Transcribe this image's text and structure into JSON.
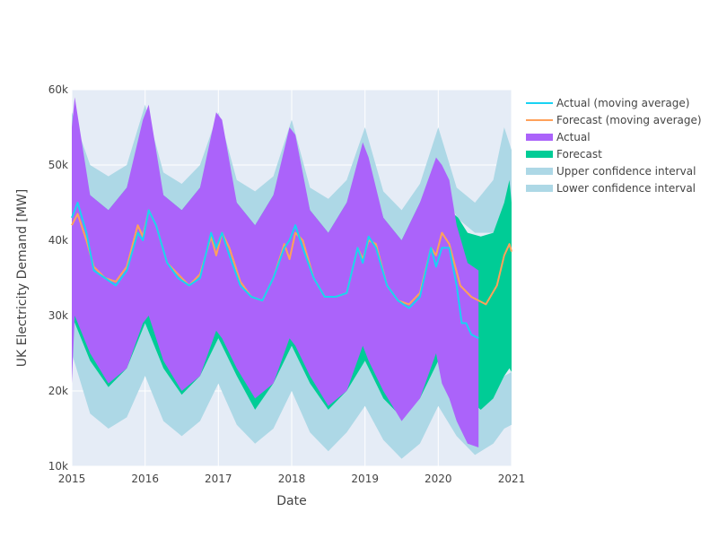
{
  "chart_data": {
    "type": "area",
    "xlabel": "Date",
    "ylabel": "UK Electricity Demand [MW]",
    "xlim": [
      2015,
      2021
    ],
    "ylim": [
      10000,
      60000
    ],
    "x_ticks": [
      {
        "value": 2015,
        "label": "2015"
      },
      {
        "value": 2016,
        "label": "2016"
      },
      {
        "value": 2017,
        "label": "2017"
      },
      {
        "value": 2018,
        "label": "2018"
      },
      {
        "value": 2019,
        "label": "2019"
      },
      {
        "value": 2020,
        "label": "2020"
      },
      {
        "value": 2021,
        "label": "2021"
      }
    ],
    "y_ticks": [
      {
        "value": 10000,
        "label": "10k"
      },
      {
        "value": 20000,
        "label": "20k"
      },
      {
        "value": 30000,
        "label": "30k"
      },
      {
        "value": 40000,
        "label": "40k"
      },
      {
        "value": 50000,
        "label": "50k"
      },
      {
        "value": 60000,
        "label": "60k"
      }
    ],
    "grid": true,
    "legend_position": "right",
    "plot_background": "#E5ECF6",
    "series": [
      {
        "name": "Actual (moving average)",
        "kind": "line",
        "color": "#19D3F3",
        "x": [
          2015.0,
          2015.08,
          2015.2,
          2015.3,
          2015.45,
          2015.6,
          2015.75,
          2015.9,
          2015.97,
          2016.05,
          2016.15,
          2016.3,
          2016.45,
          2016.6,
          2016.75,
          2016.9,
          2016.97,
          2017.05,
          2017.15,
          2017.3,
          2017.45,
          2017.6,
          2017.75,
          2017.9,
          2017.97,
          2018.05,
          2018.15,
          2018.3,
          2018.45,
          2018.6,
          2018.75,
          2018.9,
          2018.97,
          2019.05,
          2019.15,
          2019.3,
          2019.45,
          2019.6,
          2019.75,
          2019.9,
          2019.97,
          2020.05,
          2020.15,
          2020.25,
          2020.32,
          2020.38,
          2020.45,
          2020.55
        ],
        "y": [
          43000,
          45000,
          41000,
          36000,
          35000,
          34000,
          36000,
          41000,
          40000,
          44000,
          42000,
          37000,
          35000,
          34000,
          35000,
          41000,
          39000,
          41000,
          38000,
          34000,
          32500,
          32000,
          35000,
          39000,
          40000,
          42000,
          39000,
          35000,
          32500,
          32500,
          33000,
          39000,
          37000,
          40500,
          39000,
          34000,
          32000,
          31000,
          32500,
          39000,
          36500,
          39000,
          39000,
          34000,
          29000,
          29000,
          27500,
          27000
        ]
      },
      {
        "name": "Forecast (moving average)",
        "kind": "line",
        "color": "#FFA15A",
        "x": [
          2015.0,
          2015.08,
          2015.2,
          2015.3,
          2015.45,
          2015.6,
          2015.75,
          2015.9,
          2015.97,
          2016.05,
          2016.15,
          2016.3,
          2016.45,
          2016.6,
          2016.75,
          2016.9,
          2016.97,
          2017.05,
          2017.15,
          2017.3,
          2017.45,
          2017.6,
          2017.75,
          2017.9,
          2017.97,
          2018.05,
          2018.15,
          2018.3,
          2018.45,
          2018.6,
          2018.75,
          2018.9,
          2018.97,
          2019.05,
          2019.15,
          2019.3,
          2019.45,
          2019.6,
          2019.75,
          2019.9,
          2019.97,
          2020.05,
          2020.15,
          2020.3,
          2020.45,
          2020.65,
          2020.8,
          2020.9,
          2020.97,
          2021.0
        ],
        "y": [
          42000,
          43500,
          40000,
          36500,
          35000,
          34500,
          36500,
          42000,
          40500,
          44000,
          42000,
          37000,
          35500,
          34000,
          35500,
          40500,
          38000,
          41000,
          39000,
          34500,
          32500,
          32000,
          35000,
          39500,
          37500,
          41000,
          40000,
          35000,
          32500,
          32500,
          33000,
          39000,
          37500,
          40000,
          39500,
          34000,
          32000,
          31500,
          33000,
          39000,
          38000,
          41000,
          39500,
          34000,
          32500,
          31500,
          34000,
          38000,
          39500,
          38500
        ]
      },
      {
        "name": "Actual",
        "kind": "band",
        "color": "#AB63FA",
        "x": [
          2015.0,
          2015.04,
          2015.25,
          2015.5,
          2015.75,
          2015.97,
          2016.05,
          2016.25,
          2016.5,
          2016.75,
          2016.97,
          2017.05,
          2017.25,
          2017.5,
          2017.75,
          2017.97,
          2018.05,
          2018.25,
          2018.5,
          2018.75,
          2018.97,
          2019.05,
          2019.25,
          2019.5,
          2019.75,
          2019.97,
          2020.05,
          2020.15,
          2020.25,
          2020.4,
          2020.55
        ],
        "upper": [
          55000,
          59000,
          46000,
          44000,
          47000,
          56000,
          58000,
          46000,
          44000,
          47000,
          57000,
          56000,
          45000,
          42000,
          46000,
          55000,
          54000,
          44000,
          41000,
          45000,
          53000,
          51000,
          43000,
          40000,
          45000,
          51000,
          50000,
          48000,
          42000,
          37000,
          36000
        ],
        "lower": [
          21000,
          30000,
          25000,
          21000,
          23000,
          29000,
          30000,
          24000,
          20000,
          22000,
          28000,
          27000,
          23000,
          19000,
          21000,
          27000,
          26000,
          22000,
          18000,
          20000,
          26000,
          24000,
          20000,
          16000,
          19000,
          25000,
          21000,
          19000,
          16000,
          13000,
          12500
        ]
      },
      {
        "name": "Forecast",
        "kind": "band",
        "color": "#00CC96",
        "x": [
          2015.0,
          2015.25,
          2015.5,
          2015.75,
          2016.0,
          2016.25,
          2016.5,
          2016.75,
          2017.0,
          2017.25,
          2017.5,
          2017.75,
          2018.0,
          2018.25,
          2018.5,
          2018.75,
          2019.0,
          2019.25,
          2019.5,
          2019.75,
          2020.0,
          2020.15,
          2020.27,
          2020.4,
          2020.58,
          2020.75,
          2020.9,
          2020.97,
          2021.0
        ],
        "upper": [
          55000,
          46000,
          44000,
          47000,
          56000,
          46000,
          44000,
          47000,
          56000,
          45000,
          42000,
          46000,
          54000,
          44000,
          41000,
          45000,
          51000,
          43000,
          40000,
          45000,
          50000,
          44000,
          43000,
          41000,
          40500,
          41000,
          45000,
          48000,
          45000
        ],
        "lower": [
          30000,
          24000,
          20500,
          23000,
          29000,
          23000,
          19500,
          22000,
          27000,
          22000,
          17500,
          21000,
          26000,
          21000,
          17500,
          20000,
          24000,
          19000,
          16500,
          19000,
          24000,
          21000,
          20000,
          19000,
          17500,
          19000,
          22000,
          23000,
          22500
        ]
      },
      {
        "name": "Upper confidence interval",
        "kind": "band",
        "color": "#ADD8E6",
        "x": [
          2015.0,
          2015.25,
          2015.5,
          2015.75,
          2016.0,
          2016.25,
          2016.5,
          2016.75,
          2017.0,
          2017.25,
          2017.5,
          2017.75,
          2018.0,
          2018.25,
          2018.5,
          2018.75,
          2019.0,
          2019.25,
          2019.5,
          2019.75,
          2020.0,
          2020.25,
          2020.5,
          2020.75,
          2020.9,
          2021.0
        ],
        "upper": [
          57000,
          50000,
          48500,
          50000,
          58000,
          49000,
          47500,
          50000,
          57000,
          48000,
          46500,
          48500,
          56000,
          47000,
          45500,
          48000,
          55000,
          46500,
          44000,
          47500,
          55000,
          47000,
          45000,
          48000,
          55000,
          52000
        ],
        "lower": [
          55000,
          46000,
          44000,
          47000,
          56000,
          46000,
          44000,
          47000,
          56000,
          45000,
          42000,
          46000,
          54000,
          44000,
          41000,
          45000,
          51000,
          43000,
          40000,
          45000,
          50000,
          43000,
          41000,
          41000,
          45000,
          45000
        ]
      },
      {
        "name": "Lower confidence interval",
        "kind": "band",
        "color": "#ADD8E6",
        "x": [
          2015.0,
          2015.25,
          2015.5,
          2015.75,
          2016.0,
          2016.25,
          2016.5,
          2016.75,
          2017.0,
          2017.25,
          2017.5,
          2017.75,
          2018.0,
          2018.25,
          2018.5,
          2018.75,
          2019.0,
          2019.25,
          2019.5,
          2019.75,
          2020.0,
          2020.25,
          2020.5,
          2020.75,
          2020.9,
          2021.0
        ],
        "upper": [
          30000,
          24000,
          20500,
          23000,
          29000,
          23000,
          19500,
          22000,
          27000,
          22000,
          17500,
          21000,
          26000,
          21000,
          17500,
          20000,
          24000,
          19000,
          16500,
          19000,
          24000,
          20000,
          17500,
          19000,
          22000,
          22500
        ],
        "lower": [
          25000,
          17000,
          15000,
          16500,
          22000,
          16000,
          14000,
          16000,
          21000,
          15500,
          13000,
          15000,
          20000,
          14500,
          12000,
          14500,
          18000,
          13500,
          11000,
          13000,
          18000,
          14000,
          11500,
          13000,
          15000,
          15500
        ]
      }
    ]
  }
}
